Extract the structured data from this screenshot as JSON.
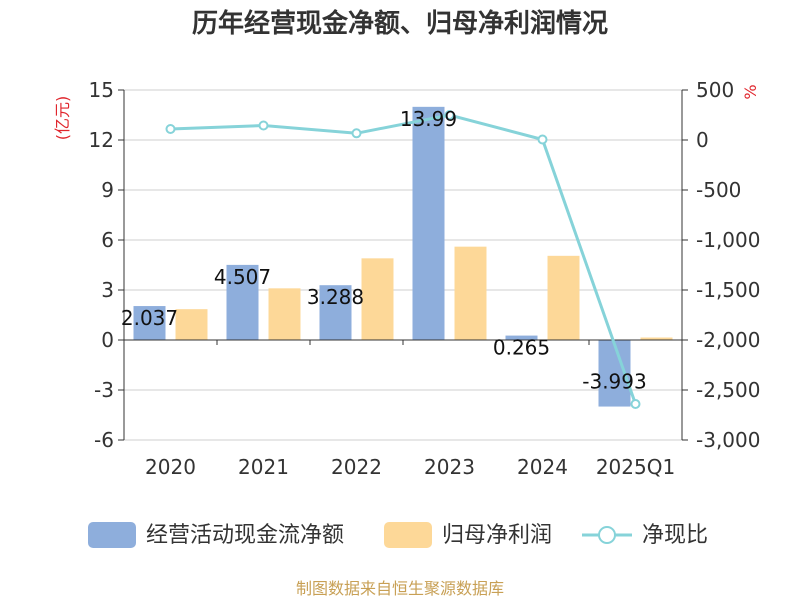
{
  "chart_data": {
    "type": "bar+line",
    "title": "历年经营现金净额、归母净利润情况",
    "categories": [
      "2020",
      "2021",
      "2022",
      "2023",
      "2024",
      "2025Q1"
    ],
    "series": [
      {
        "name": "经营活动现金流净额",
        "type": "bar",
        "axis": "left",
        "color": "#8eaedc",
        "values": [
          2.037,
          4.507,
          3.288,
          13.99,
          0.265,
          -3.993
        ],
        "labels": [
          "2.037",
          "4.507",
          "3.288",
          "13.99",
          "0.265",
          "-3.993"
        ]
      },
      {
        "name": "归母净利润",
        "type": "bar",
        "axis": "left",
        "color": "#fdd898",
        "values": [
          1.85,
          3.1,
          4.9,
          5.6,
          5.05,
          0.15
        ]
      },
      {
        "name": "净现比",
        "type": "line",
        "axis": "right",
        "color": "#86d3d9",
        "values": [
          110,
          145,
          67,
          250,
          5,
          -2640
        ]
      }
    ],
    "left_axis": {
      "unit": "(亿元)",
      "min": -6,
      "max": 15,
      "ticks": [
        15,
        12,
        9,
        6,
        3,
        0,
        -3,
        -6
      ]
    },
    "right_axis": {
      "unit": "%",
      "min": -3000,
      "max": 500,
      "ticks": [
        500,
        0,
        -500,
        -1000,
        -1500,
        -2000,
        -2500,
        -3000
      ],
      "tick_labels": [
        "500",
        "0",
        "-500",
        "-1,000",
        "-1,500",
        "-2,000",
        "-2,500",
        "-3,000"
      ]
    },
    "source": "制图数据来自恒生聚源数据库"
  }
}
